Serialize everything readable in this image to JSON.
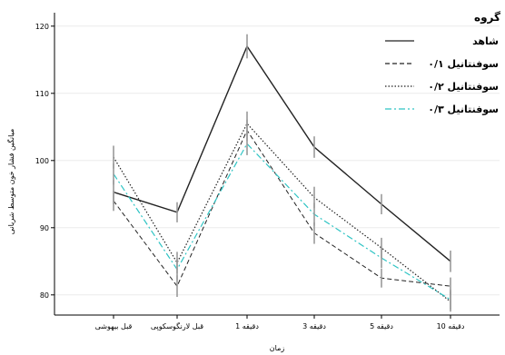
{
  "chart_data": {
    "type": "line",
    "xlabel": "زمان",
    "ylabel": "میانگین فشار خون متوسط شریانی",
    "categories": [
      "قبل بیهوشی",
      "قبل لارنگوسکوپی",
      "دقیقه 1",
      "دقیقه 3",
      "دقیقه 5",
      "دقیقه 10"
    ],
    "ylim": [
      77,
      122
    ],
    "yticks": [
      80,
      90,
      100,
      110,
      120
    ],
    "grid": true,
    "legend": {
      "title": "گروه",
      "placement": "top-right"
    },
    "series": [
      {
        "name": "شاهد",
        "values": [
          95.3,
          92.3,
          117.0,
          102.0,
          93.5,
          85.0
        ],
        "err": [
          1.8,
          1.5,
          1.8,
          1.6,
          1.5,
          1.6
        ],
        "color": "#222222",
        "dash": "solid"
      },
      {
        "name": "سوفنتانیل ۰/۱",
        "values": [
          94.0,
          81.3,
          104.5,
          89.2,
          82.5,
          81.3
        ],
        "err": [
          1.5,
          1.6,
          1.6,
          1.6,
          1.4,
          1.3
        ],
        "color": "#222222",
        "dash": "dashed"
      },
      {
        "name": "سوفنتانیل ۰/۲",
        "values": [
          100.5,
          84.8,
          105.5,
          94.5,
          87.0,
          79.0
        ],
        "err": [
          1.7,
          1.6,
          1.8,
          1.6,
          1.5,
          1.5
        ],
        "color": "#222222",
        "dash": "dotted"
      },
      {
        "name": "سوفنتانیل ۰/۳",
        "values": [
          98.0,
          83.8,
          102.5,
          92.0,
          85.5,
          79.3
        ],
        "err": [
          1.6,
          1.6,
          1.7,
          1.7,
          1.5,
          1.5
        ],
        "color": "#2ec4c4",
        "dash": "dashdot"
      }
    ]
  }
}
